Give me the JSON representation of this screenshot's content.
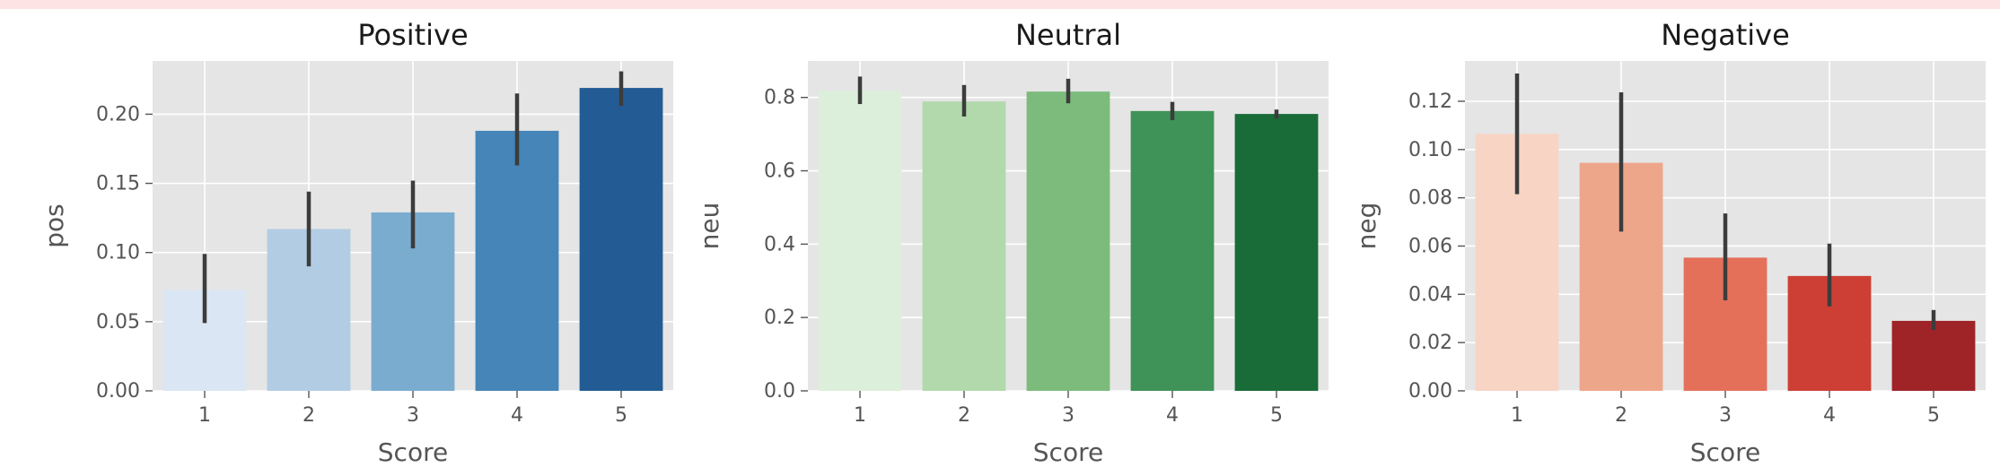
{
  "colors": {
    "panel_bg": "#e5e5e5",
    "grid": "#ffffff",
    "text": "#555555",
    "title": "#1a1a1a",
    "errorbar": "#3c3c3c",
    "warning_bg": "#fde3e3"
  },
  "chart_data": [
    {
      "type": "bar",
      "title": "Positive",
      "xlabel": "Score",
      "ylabel": "pos",
      "categories": [
        "1",
        "2",
        "3",
        "4",
        "5"
      ],
      "values": [
        0.073,
        0.117,
        0.129,
        0.188,
        0.219
      ],
      "error_low": [
        0.049,
        0.09,
        0.103,
        0.163,
        0.206
      ],
      "error_high": [
        0.099,
        0.144,
        0.152,
        0.215,
        0.231
      ],
      "colors": [
        "#dae6f3",
        "#b2cde3",
        "#7aacd0",
        "#4585b7",
        "#235c94"
      ],
      "ylim": [
        0,
        0.2385
      ],
      "yticks": [
        0.0,
        0.05,
        0.1,
        0.15,
        0.2
      ],
      "ytick_labels": [
        "0.00",
        "0.05",
        "0.10",
        "0.15",
        "0.20"
      ],
      "grid": true
    },
    {
      "type": "bar",
      "title": "Neutral",
      "xlabel": "Score",
      "ylabel": "neu",
      "categories": [
        "1",
        "2",
        "3",
        "4",
        "5"
      ],
      "values": [
        0.818,
        0.789,
        0.816,
        0.763,
        0.755
      ],
      "error_low": [
        0.782,
        0.748,
        0.784,
        0.738,
        0.742
      ],
      "error_high": [
        0.857,
        0.834,
        0.851,
        0.788,
        0.767
      ],
      "colors": [
        "#dcefda",
        "#b1d9ac",
        "#7cbb7c",
        "#3f9358",
        "#196b37"
      ],
      "ylim": [
        0,
        0.8995
      ],
      "yticks": [
        0.0,
        0.2,
        0.4,
        0.6,
        0.8
      ],
      "ytick_labels": [
        "0.0",
        "0.2",
        "0.4",
        "0.6",
        "0.8"
      ],
      "grid": true
    },
    {
      "type": "bar",
      "title": "Negative",
      "xlabel": "Score",
      "ylabel": "neg",
      "categories": [
        "1",
        "2",
        "3",
        "4",
        "5"
      ],
      "values": [
        0.1065,
        0.0945,
        0.0552,
        0.0476,
        0.029
      ],
      "error_low": [
        0.0815,
        0.066,
        0.0375,
        0.035,
        0.0252
      ],
      "error_high": [
        0.1315,
        0.1237,
        0.0735,
        0.061,
        0.0335
      ],
      "colors": [
        "#f8d4c5",
        "#eea68a",
        "#e4705a",
        "#cd3f35",
        "#9e2428"
      ],
      "ylim": [
        0,
        0.1367
      ],
      "yticks": [
        0.0,
        0.02,
        0.04,
        0.06,
        0.08,
        0.1,
        0.12
      ],
      "ytick_labels": [
        "0.00",
        "0.02",
        "0.04",
        "0.06",
        "0.08",
        "0.10",
        "0.12"
      ],
      "grid": true
    }
  ]
}
